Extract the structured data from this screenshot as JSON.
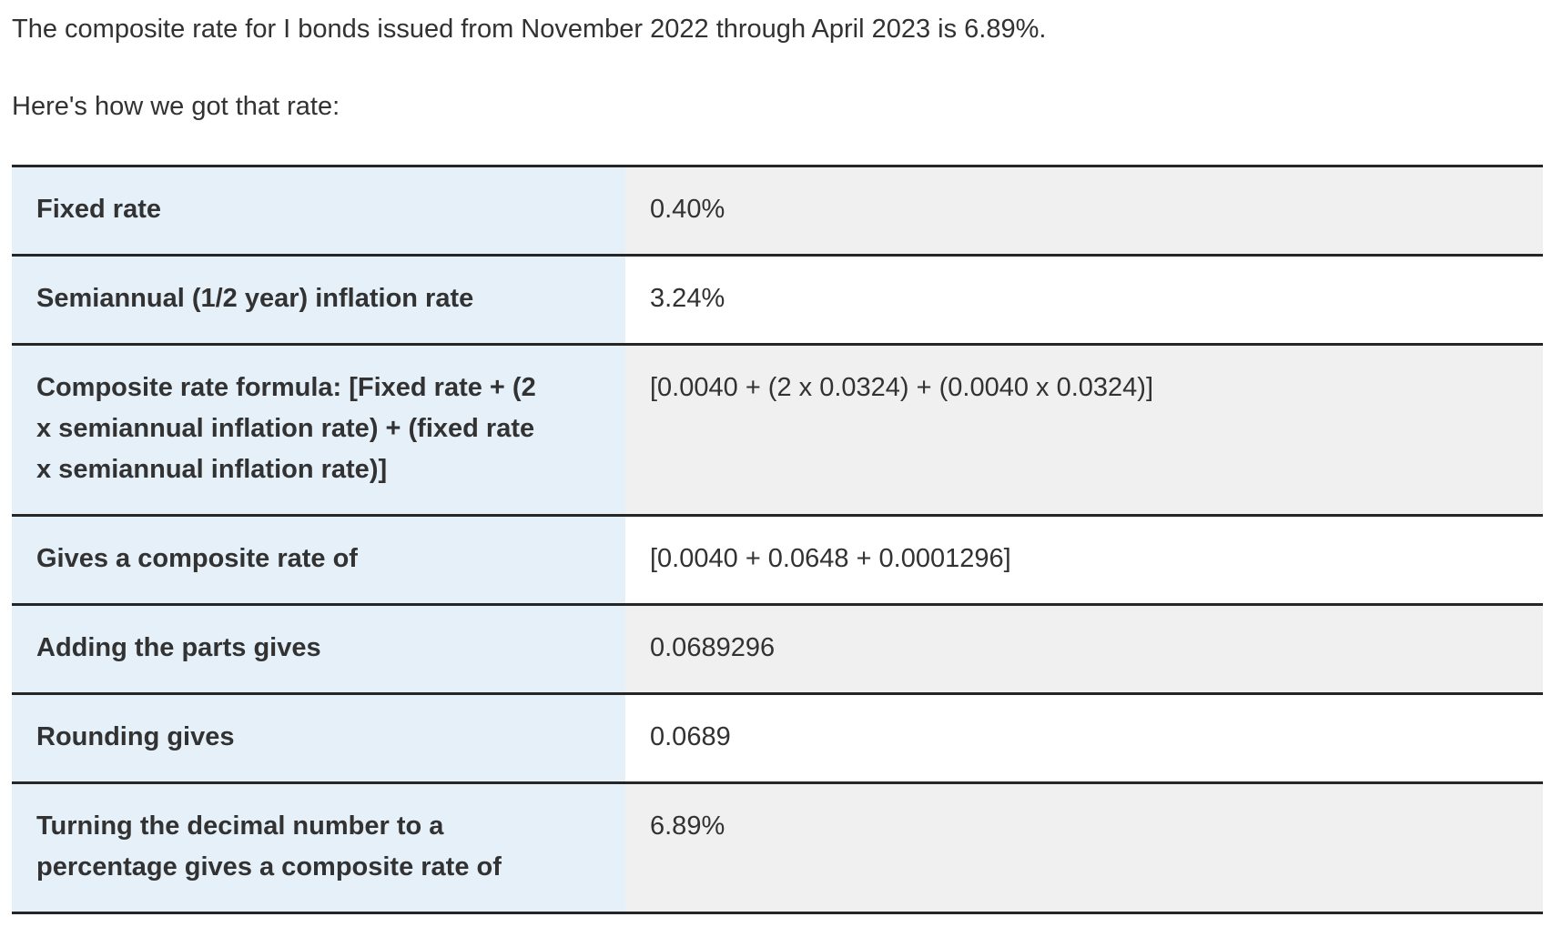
{
  "page": {
    "intro": "The composite rate for I bonds issued from November 2022 through April 2023 is 6.89%.",
    "lead_in": "Here's how we got that rate:"
  },
  "colors": {
    "label_column_bg": "#e5f0f9",
    "value_row_odd_bg": "#f0f0f0",
    "value_row_even_bg": "#ffffff",
    "border": "#262626",
    "text": "#323233"
  },
  "table": {
    "rows": [
      {
        "label": "Fixed rate",
        "value": "0.40%"
      },
      {
        "label": "Semiannual (1/2 year) inflation rate",
        "value": "3.24%"
      },
      {
        "label": "Composite rate formula: [Fixed rate + (2\nx semiannual inflation rate) + (fixed rate\nx semiannual inflation rate)]",
        "value": "[0.0040 + (2 x 0.0324) + (0.0040 x 0.0324)]"
      },
      {
        "label": "Gives a composite rate of",
        "value": "[0.0040 + 0.0648 + 0.0001296]"
      },
      {
        "label": "Adding the parts gives",
        "value": "0.0689296"
      },
      {
        "label": "Rounding gives",
        "value": "0.0689"
      },
      {
        "label": "Turning the decimal number to a\npercentage gives a composite rate of",
        "value": "6.89%"
      }
    ]
  }
}
